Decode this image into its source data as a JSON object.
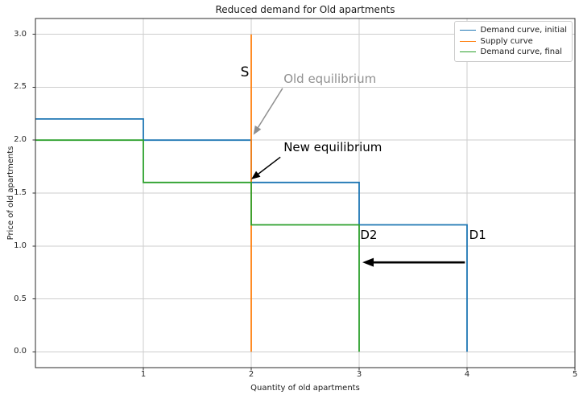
{
  "chart_data": {
    "type": "line",
    "title": "Reduced demand for Old apartments",
    "xlabel": "Quantity of old apartments",
    "ylabel": "Price of old apartments",
    "xlim": [
      0,
      5
    ],
    "ylim": [
      -0.15,
      3.15
    ],
    "grid": true,
    "legend_position": "upper right",
    "xticks": [
      {
        "value": 1,
        "label": "1"
      },
      {
        "value": 2,
        "label": "2"
      },
      {
        "value": 3,
        "label": "3"
      },
      {
        "value": 4,
        "label": "4"
      },
      {
        "value": 5,
        "label": "5"
      }
    ],
    "yticks": [
      {
        "value": 0,
        "label": "0.0"
      },
      {
        "value": 0.5,
        "label": "0.5"
      },
      {
        "value": 1,
        "label": "1.0"
      },
      {
        "value": 1.5,
        "label": "1.5"
      },
      {
        "value": 2,
        "label": "2.0"
      },
      {
        "value": 2.5,
        "label": "2.5"
      },
      {
        "value": 3,
        "label": "3.0"
      }
    ],
    "series": [
      {
        "id": "demand-initial",
        "name": "Demand curve, initial",
        "color": "#1f77b4",
        "points": [
          [
            0,
            2.2
          ],
          [
            1,
            2.2
          ],
          [
            1,
            2.0
          ],
          [
            2,
            2.0
          ],
          [
            2,
            1.6
          ],
          [
            3,
            1.6
          ],
          [
            3,
            1.2
          ],
          [
            4,
            1.2
          ],
          [
            4,
            0
          ]
        ]
      },
      {
        "id": "supply",
        "name": "Supply curve",
        "color": "#ff7f0e",
        "points": [
          [
            2,
            0
          ],
          [
            2,
            3.0
          ]
        ]
      },
      {
        "id": "demand-final",
        "name": "Demand curve, final",
        "color": "#2ca02c",
        "points": [
          [
            0,
            2.0
          ],
          [
            1,
            2.0
          ],
          [
            1,
            1.6
          ],
          [
            2,
            1.6
          ],
          [
            2,
            1.2
          ],
          [
            3,
            1.2
          ],
          [
            3,
            0
          ]
        ]
      }
    ],
    "annotations": [
      {
        "id": "supply-label",
        "text": "S",
        "x": 1.9,
        "y": 2.7,
        "color": "#000000",
        "fontsize": 17
      },
      {
        "id": "old-equilibrium-label",
        "text": "Old equilibrium",
        "x": 2.3,
        "y": 2.63,
        "color": "#909090",
        "fontsize": 15,
        "arrow": {
          "from": [
            2.29,
            2.49
          ],
          "to": [
            2.02,
            2.05
          ],
          "lw": 1.5,
          "head_len": 11,
          "head_w": 9
        }
      },
      {
        "id": "new-equilibrium-label",
        "text": "New equilibrium",
        "x": 2.3,
        "y": 1.99,
        "color": "#000000",
        "fontsize": 15,
        "arrow": {
          "from": [
            2.27,
            1.84
          ],
          "to": [
            2.0,
            1.63
          ],
          "lw": 1.5,
          "head_len": 11,
          "head_w": 9
        }
      },
      {
        "id": "d2-label",
        "text": "D2",
        "x": 3.01,
        "y": 1.16,
        "color": "#000000",
        "fontsize": 15
      },
      {
        "id": "d1-label",
        "text": "D1",
        "x": 4.02,
        "y": 1.16,
        "color": "#000000",
        "fontsize": 15
      },
      {
        "id": "demand-shift-arrow",
        "text": null,
        "color": "#000000",
        "arrow": {
          "from": [
            3.98,
            0.845
          ],
          "to": [
            3.03,
            0.845
          ],
          "lw": 2.6,
          "head_len": 14,
          "head_w": 11
        }
      }
    ],
    "equilibria": {
      "old": {
        "quantity": 2,
        "price": 2.0
      },
      "new": {
        "quantity": 2,
        "price": 1.6
      }
    }
  },
  "style": {
    "background": "#ffffff",
    "grid_color": "#cdcdcd",
    "spine_color": "#2b2b2b",
    "tick_color": "#333333",
    "text_color": "#262626",
    "legend_border_color": "#cccccc"
  }
}
